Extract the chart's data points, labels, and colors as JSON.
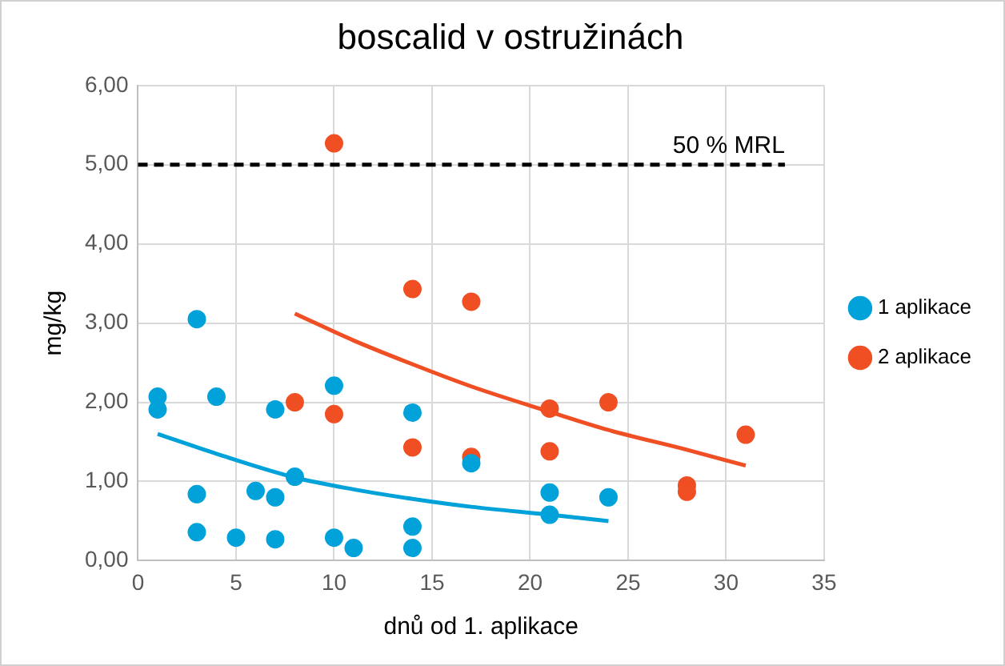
{
  "chart_data": {
    "type": "scatter",
    "title": "boscalid v ostružinách",
    "xlabel": "dnů od 1. aplikace",
    "ylabel": "mg/kg",
    "xlim": [
      0,
      35
    ],
    "xticks": [
      0,
      5,
      10,
      15,
      20,
      25,
      30,
      35
    ],
    "ylim": [
      0,
      6
    ],
    "yticks": [
      {
        "value": 0,
        "label": "0,00"
      },
      {
        "value": 1,
        "label": "1,00"
      },
      {
        "value": 2,
        "label": "2,00"
      },
      {
        "value": 3,
        "label": "3,00"
      },
      {
        "value": 4,
        "label": "4,00"
      },
      {
        "value": 5,
        "label": "5,00"
      },
      {
        "value": 6,
        "label": "6,00"
      }
    ],
    "grid": true,
    "legend": "right",
    "marker": "circle",
    "ref_lines": [
      {
        "axis": "y",
        "value": 5,
        "label": "50 % MRL",
        "color": "#000000",
        "line_style": "dashed"
      }
    ],
    "series": [
      {
        "name": "1 aplikace",
        "color": "#00a2d9",
        "x": [
          1,
          1,
          3,
          3,
          3,
          4,
          5,
          6,
          7,
          7,
          7,
          8,
          10,
          10,
          11,
          14,
          14,
          14,
          17,
          21,
          21,
          24
        ],
        "values": [
          2.07,
          1.91,
          3.05,
          0.84,
          0.36,
          2.07,
          0.29,
          0.88,
          1.91,
          0.8,
          0.27,
          1.06,
          2.21,
          0.29,
          0.16,
          1.87,
          0.43,
          0.16,
          1.23,
          0.86,
          0.58,
          0.8
        ]
      },
      {
        "name": "2 aplikace",
        "color": "#f04e23",
        "x": [
          8,
          10,
          10,
          14,
          14,
          17,
          17,
          21,
          21,
          24,
          28,
          28,
          31
        ],
        "values": [
          2.0,
          5.27,
          1.85,
          3.43,
          1.43,
          3.27,
          1.31,
          1.92,
          1.38,
          2.0,
          0.95,
          0.87,
          1.59
        ]
      },
      {
        "type": "line",
        "color": "#00a2d9",
        "marker": "none",
        "x": [
          1,
          4,
          8,
          11,
          14,
          17,
          21,
          24
        ],
        "values": [
          1.6,
          1.35,
          1.05,
          0.9,
          0.78,
          0.68,
          0.58,
          0.5
        ]
      },
      {
        "type": "line",
        "color": "#f04e23",
        "marker": "none",
        "x": [
          8,
          11,
          14,
          17,
          21,
          24,
          28,
          31
        ],
        "values": [
          3.12,
          2.78,
          2.48,
          2.2,
          1.88,
          1.65,
          1.4,
          1.2
        ]
      }
    ]
  }
}
